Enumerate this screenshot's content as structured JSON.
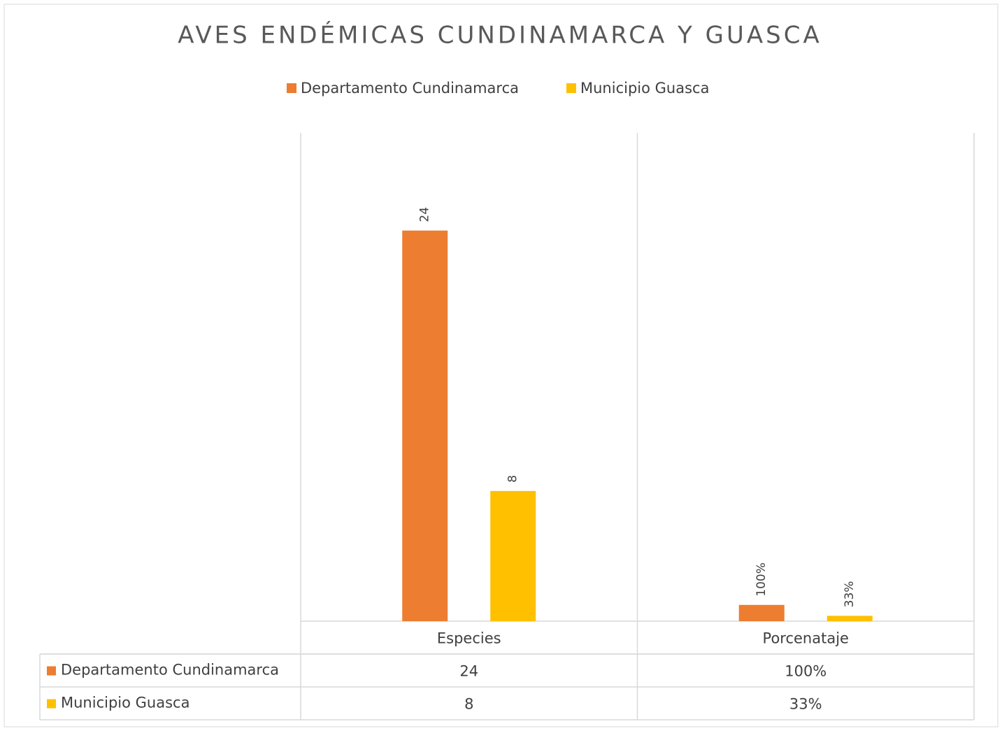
{
  "chart_data": {
    "type": "bar",
    "title": "AVES ENDÉMICAS CUNDINAMARCA Y GUASCA",
    "categories": [
      "Especies",
      "Porcenataje"
    ],
    "series": [
      {
        "name": "Departamento Cundinamarca",
        "color": "#ed7d31",
        "values": [
          24,
          1
        ],
        "value_labels": [
          "24",
          "100%"
        ]
      },
      {
        "name": "Municipio Guasca",
        "color": "#ffc000",
        "values": [
          8,
          0.33
        ],
        "value_labels": [
          "8",
          "33%"
        ]
      }
    ],
    "ylim": [
      0,
      30
    ],
    "legend": "top",
    "data_table": true
  }
}
